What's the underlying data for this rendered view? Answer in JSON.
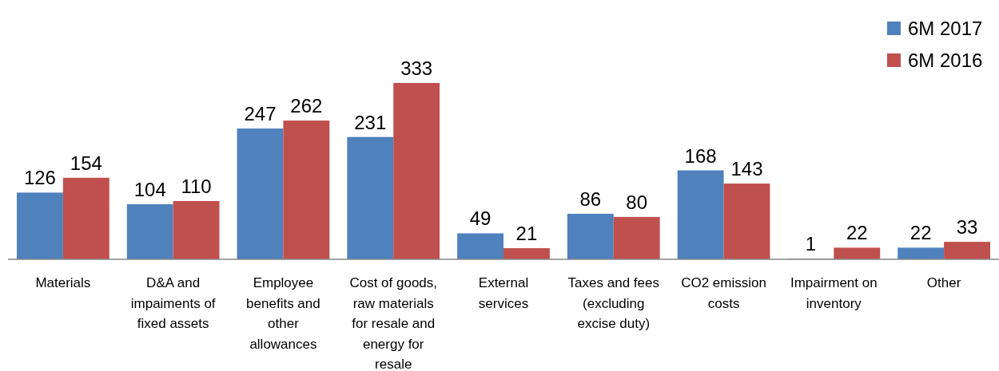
{
  "chart_data": {
    "type": "bar",
    "categories": [
      "Materials",
      "D&A and impaiments of fixed assets",
      "Employee benefits and other allowances",
      "Cost of goods, raw materials for resale and energy for resale",
      "External services",
      "Taxes and fees (excluding excise duty)",
      "CO2 emission costs",
      "Impairment on inventory",
      "Other"
    ],
    "series": [
      {
        "name": "6M 2017",
        "color": "#4f81bd",
        "values": [
          126,
          104,
          247,
          231,
          49,
          86,
          168,
          1,
          22
        ]
      },
      {
        "name": "6M 2016",
        "color": "#c0504d",
        "values": [
          154,
          110,
          262,
          333,
          21,
          80,
          143,
          22,
          33
        ]
      }
    ],
    "data_labels": true,
    "legend": "top right"
  }
}
